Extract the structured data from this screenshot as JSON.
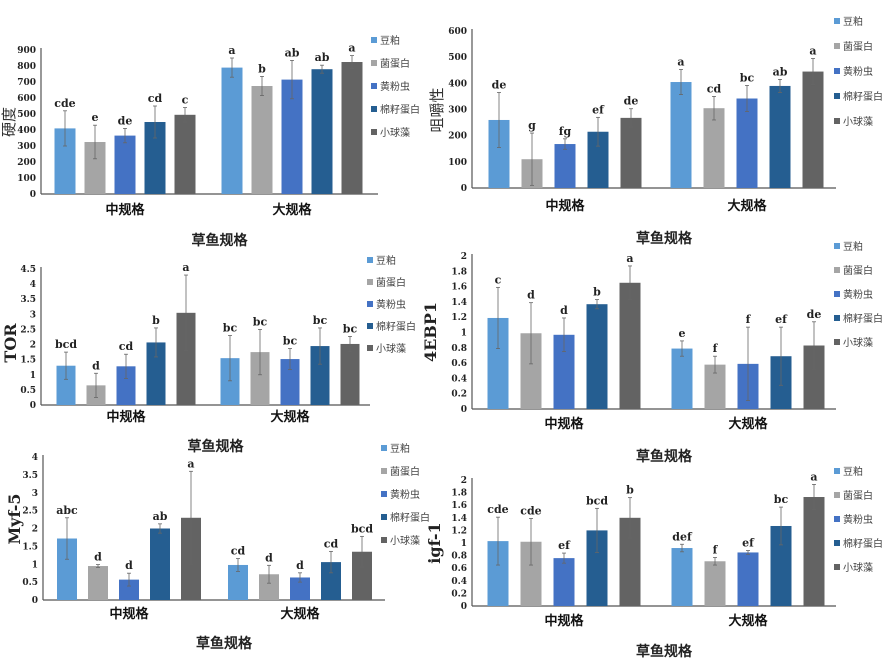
{
  "series_names": [
    "豆粕",
    "菌蛋白",
    "黄粉虫",
    "棉籽蛋白",
    "小球藻"
  ],
  "series_colors": [
    "#5b9bd5",
    "#a5a5a5",
    "#4472c4",
    "#255e91",
    "#636363"
  ],
  "chart_data": [
    {
      "type": "bar",
      "title": "",
      "xlabel": "草鱼规格",
      "ylabel": "硬度",
      "categories": [
        "中规格",
        "大规格"
      ],
      "ylim": [
        0,
        900
      ],
      "yticks": [
        "0",
        "100",
        "200",
        "300",
        "400",
        "500",
        "600",
        "700",
        "800",
        "900"
      ],
      "legend": "right",
      "series": [
        {
          "name": "豆粕",
          "values": [
            410,
            790
          ],
          "errors": [
            110,
            60
          ],
          "labels": [
            "cde",
            "a"
          ]
        },
        {
          "name": "菌蛋白",
          "values": [
            325,
            675
          ],
          "errors": [
            105,
            60
          ],
          "labels": [
            "e",
            "b"
          ]
        },
        {
          "name": "黄粉虫",
          "values": [
            365,
            715
          ],
          "errors": [
            45,
            120
          ],
          "labels": [
            "de",
            "ab"
          ]
        },
        {
          "name": "棉籽蛋白",
          "values": [
            450,
            780
          ],
          "errors": [
            100,
            25
          ],
          "labels": [
            "cd",
            "ab"
          ]
        },
        {
          "name": "小球藻",
          "values": [
            495,
            825
          ],
          "errors": [
            45,
            40
          ],
          "labels": [
            "c",
            "a"
          ]
        }
      ]
    },
    {
      "type": "bar",
      "title": "",
      "xlabel": "草鱼规格",
      "ylabel": "咀嚼性",
      "categories": [
        "中规格",
        "大规格"
      ],
      "ylim": [
        0,
        600
      ],
      "yticks": [
        "0",
        "100",
        "200",
        "300",
        "400",
        "500",
        "600"
      ],
      "legend": "right",
      "series": [
        {
          "name": "豆粕",
          "values": [
            260,
            405
          ],
          "errors": [
            105,
            48
          ],
          "labels": [
            "de",
            "a"
          ]
        },
        {
          "name": "菌蛋白",
          "values": [
            110,
            305
          ],
          "errors": [
            100,
            45
          ],
          "labels": [
            "g",
            "cd"
          ]
        },
        {
          "name": "黄粉虫",
          "values": [
            168,
            342
          ],
          "errors": [
            20,
            50
          ],
          "labels": [
            "fg",
            "bc"
          ]
        },
        {
          "name": "棉籽蛋白",
          "values": [
            215,
            390
          ],
          "errors": [
            55,
            25
          ],
          "labels": [
            "ef",
            "ab"
          ]
        },
        {
          "name": "小球藻",
          "values": [
            268,
            445
          ],
          "errors": [
            35,
            50
          ],
          "labels": [
            "de",
            "a"
          ]
        }
      ]
    },
    {
      "type": "bar",
      "title": "",
      "xlabel": "草鱼规格",
      "ylabel": "TOR",
      "categories": [
        "中规格",
        "大规格"
      ],
      "ylim": [
        0,
        4.5
      ],
      "yticks": [
        "0",
        "0.5",
        "1",
        "1.5",
        "2",
        "2.5",
        "3",
        "3.5",
        "4",
        "4.5"
      ],
      "legend": "right",
      "series": [
        {
          "name": "豆粕",
          "values": [
            1.3,
            1.55
          ],
          "errors": [
            0.45,
            0.75
          ],
          "labels": [
            "bcd",
            "bc"
          ]
        },
        {
          "name": "菌蛋白",
          "values": [
            0.65,
            1.75
          ],
          "errors": [
            0.4,
            0.75
          ],
          "labels": [
            "d",
            "bc"
          ]
        },
        {
          "name": "黄粉虫",
          "values": [
            1.28,
            1.52
          ],
          "errors": [
            0.4,
            0.35
          ],
          "labels": [
            "cd",
            "bc"
          ]
        },
        {
          "name": "棉籽蛋白",
          "values": [
            2.07,
            1.95
          ],
          "errors": [
            0.48,
            0.6
          ],
          "labels": [
            "b",
            "bc"
          ]
        },
        {
          "name": "小球藻",
          "values": [
            3.05,
            2.02
          ],
          "errors": [
            1.25,
            0.25
          ],
          "labels": [
            "a",
            "bc"
          ]
        }
      ]
    },
    {
      "type": "bar",
      "title": "",
      "xlabel": "草鱼规格",
      "ylabel": "4EBP1",
      "categories": [
        "中规格",
        "大规格"
      ],
      "ylim": [
        0,
        2
      ],
      "yticks": [
        "0",
        "0.2",
        "0.4",
        "0.6",
        "0.8",
        "1",
        "1.2",
        "1.4",
        "1.6",
        "1.8",
        "2"
      ],
      "legend": "right",
      "series": [
        {
          "name": "豆粕",
          "values": [
            1.19,
            0.79
          ],
          "errors": [
            0.4,
            0.1
          ],
          "labels": [
            "c",
            "e"
          ]
        },
        {
          "name": "菌蛋白",
          "values": [
            0.99,
            0.58
          ],
          "errors": [
            0.4,
            0.11
          ],
          "labels": [
            "d",
            "f"
          ]
        },
        {
          "name": "黄粉虫",
          "values": [
            0.97,
            0.59
          ],
          "errors": [
            0.22,
            0.48
          ],
          "labels": [
            "d",
            "f"
          ]
        },
        {
          "name": "棉籽蛋白",
          "values": [
            1.37,
            0.69
          ],
          "errors": [
            0.06,
            0.38
          ],
          "labels": [
            "b",
            "ef"
          ]
        },
        {
          "name": "小球藻",
          "values": [
            1.65,
            0.83
          ],
          "errors": [
            0.22,
            0.31
          ],
          "labels": [
            "a",
            "de"
          ]
        }
      ]
    },
    {
      "type": "bar",
      "title": "",
      "xlabel": "草鱼规格",
      "ylabel": "Myf-5",
      "categories": [
        "中规格",
        "大规格"
      ],
      "ylim": [
        0,
        4
      ],
      "yticks": [
        "0",
        "0.5",
        "1",
        "1.5",
        "2",
        "2.5",
        "3",
        "3.5",
        "4"
      ],
      "legend": "right",
      "series": [
        {
          "name": "豆粕",
          "values": [
            1.72,
            0.98
          ],
          "errors": [
            0.58,
            0.18
          ],
          "labels": [
            "abc",
            "cd"
          ]
        },
        {
          "name": "菌蛋白",
          "values": [
            0.95,
            0.72
          ],
          "errors": [
            0.04,
            0.25
          ],
          "labels": [
            "d",
            "d"
          ]
        },
        {
          "name": "黄粉虫",
          "values": [
            0.57,
            0.63
          ],
          "errors": [
            0.18,
            0.13
          ],
          "labels": [
            "d",
            "d"
          ]
        },
        {
          "name": "棉籽蛋白",
          "values": [
            2.0,
            1.06
          ],
          "errors": [
            0.13,
            0.3
          ],
          "labels": [
            "ab",
            "cd"
          ]
        },
        {
          "name": "小球藻",
          "values": [
            2.3,
            1.35
          ],
          "errors": [
            1.3,
            0.43
          ],
          "labels": [
            "a",
            "bcd"
          ]
        }
      ]
    },
    {
      "type": "bar",
      "title": "",
      "xlabel": "草鱼规格",
      "ylabel": "igf-1",
      "categories": [
        "中规格",
        "大规格"
      ],
      "ylim": [
        0,
        2
      ],
      "yticks": [
        "0",
        "0.2",
        "0.4",
        "0.6",
        "0.8",
        "1",
        "1.2",
        "1.4",
        "1.6",
        "1.8",
        "2"
      ],
      "legend": "right",
      "series": [
        {
          "name": "豆粕",
          "values": [
            1.03,
            0.92
          ],
          "errors": [
            0.38,
            0.06
          ],
          "labels": [
            "cde",
            "def"
          ]
        },
        {
          "name": "菌蛋白",
          "values": [
            1.02,
            0.71
          ],
          "errors": [
            0.37,
            0.06
          ],
          "labels": [
            "cde",
            "f"
          ]
        },
        {
          "name": "黄粉虫",
          "values": [
            0.76,
            0.85
          ],
          "errors": [
            0.08,
            0.03
          ],
          "labels": [
            "ef",
            "ef"
          ]
        },
        {
          "name": "棉籽蛋白",
          "values": [
            1.2,
            1.27
          ],
          "errors": [
            0.35,
            0.3
          ],
          "labels": [
            "bcd",
            "bc"
          ]
        },
        {
          "name": "小球藻",
          "values": [
            1.4,
            1.73
          ],
          "errors": [
            0.32,
            0.2
          ],
          "labels": [
            "b",
            "a"
          ]
        }
      ]
    }
  ]
}
